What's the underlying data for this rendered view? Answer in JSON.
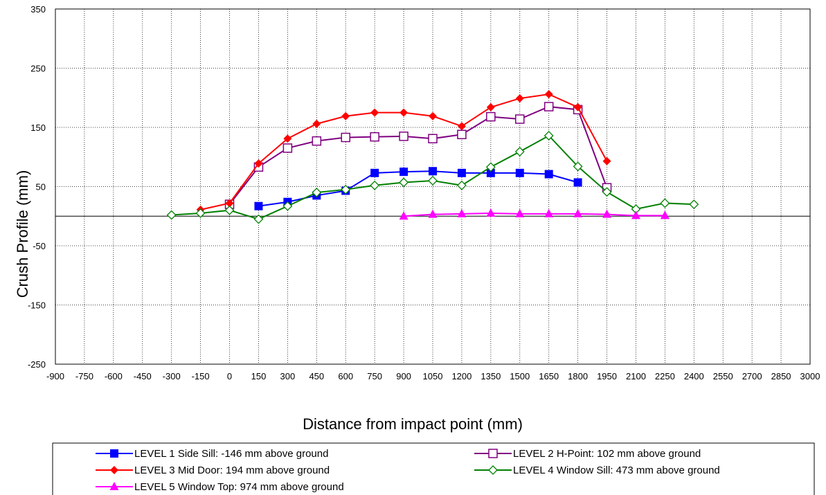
{
  "chart_data": {
    "type": "line",
    "xlabel": "Distance from impact point (mm)",
    "ylabel": "Crush Profile (mm)",
    "xlim": [
      -900,
      3000
    ],
    "ylim": [
      -250,
      350
    ],
    "x_ticks": [
      -900,
      -750,
      -600,
      -450,
      -300,
      -150,
      0,
      150,
      300,
      450,
      600,
      750,
      900,
      1050,
      1200,
      1350,
      1500,
      1650,
      1800,
      1950,
      2100,
      2250,
      2400,
      2550,
      2700,
      2850,
      3000
    ],
    "y_ticks": [
      350,
      250,
      150,
      50,
      -50,
      -150,
      -250
    ],
    "grid": "dotted",
    "legend_position": "bottom",
    "series": [
      {
        "name": "LEVEL 1 Side Sill:   -146 mm above ground",
        "color": "#0000ff",
        "marker": "square-filled",
        "x": [
          150,
          300,
          450,
          600,
          750,
          900,
          1050,
          1200,
          1350,
          1500,
          1650,
          1800
        ],
        "y": [
          17,
          24,
          35,
          43,
          73,
          75,
          76,
          73,
          73,
          73,
          71,
          57
        ]
      },
      {
        "name": "LEVEL 2 H-Point:  102 mm above ground",
        "color": "#800080",
        "marker": "square-open",
        "x": [
          0,
          150,
          300,
          450,
          600,
          750,
          900,
          1050,
          1200,
          1350,
          1500,
          1650,
          1800,
          1950
        ],
        "y": [
          20,
          83,
          115,
          127,
          133,
          134,
          135,
          131,
          138,
          168,
          164,
          185,
          180,
          48
        ]
      },
      {
        "name": "LEVEL 3 Mid Door:  194 mm above ground",
        "color": "#ff0000",
        "marker": "diamond-filled",
        "x": [
          -150,
          0,
          150,
          300,
          450,
          600,
          750,
          900,
          1050,
          1200,
          1350,
          1500,
          1650,
          1800,
          1950
        ],
        "y": [
          11,
          22,
          89,
          131,
          156,
          169,
          175,
          175,
          169,
          152,
          184,
          199,
          206,
          184,
          93
        ]
      },
      {
        "name": "LEVEL 4 Window Sill:  473 mm above ground",
        "color": "#008000",
        "marker": "diamond-open",
        "x": [
          -300,
          -150,
          0,
          150,
          300,
          450,
          600,
          750,
          900,
          1050,
          1200,
          1350,
          1500,
          1650,
          1800,
          1950,
          2100,
          2250,
          2400
        ],
        "y": [
          2,
          5,
          10,
          -5,
          17,
          40,
          45,
          52,
          57,
          60,
          52,
          83,
          109,
          136,
          84,
          41,
          12,
          22,
          20
        ]
      },
      {
        "name": "LEVEL 5 Window Top:  974 mm above ground",
        "color": "#ff00ff",
        "marker": "triangle-filled",
        "x": [
          900,
          1050,
          1200,
          1350,
          1500,
          1650,
          1800,
          1950,
          2100,
          2250
        ],
        "y": [
          0,
          3,
          4,
          5,
          4,
          4,
          4,
          3,
          1,
          1
        ]
      }
    ]
  }
}
